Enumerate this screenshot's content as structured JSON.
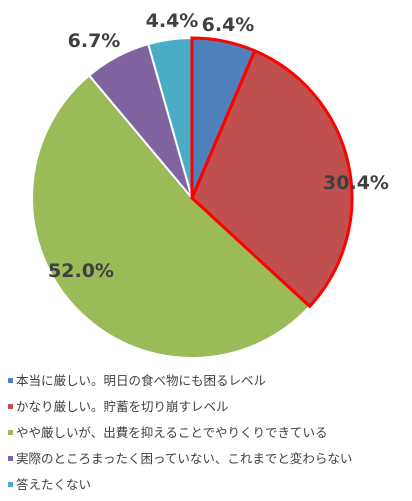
{
  "chart_data": {
    "type": "pie",
    "slices": [
      {
        "label": "本当に厳しい。明日の食べ物にも困るレベル",
        "value": 6.4,
        "display": "6.4%",
        "color": "#4f81bd",
        "highlighted": true
      },
      {
        "label": "かなり厳しい。貯蓄を切り崩すレベル",
        "value": 30.4,
        "display": "30.4%",
        "color": "#c0504d",
        "highlighted": true
      },
      {
        "label": "やや厳しいが、出費を抑えることでやりくりできている",
        "value": 52.0,
        "display": "52.0%",
        "color": "#9bbb59",
        "highlighted": false
      },
      {
        "label": "実際のところまったく困っていない、これまでと変わらない",
        "value": 6.7,
        "display": "6.7%",
        "color": "#8064a2",
        "highlighted": false
      },
      {
        "label": "答えたくない",
        "value": 4.4,
        "display": "4.4%",
        "color": "#4bacc6",
        "highlighted": false
      }
    ],
    "start_angle": "12 o'clock",
    "direction": "clockwise",
    "legend_position": "bottom",
    "highlight_color": "#ff0000"
  }
}
